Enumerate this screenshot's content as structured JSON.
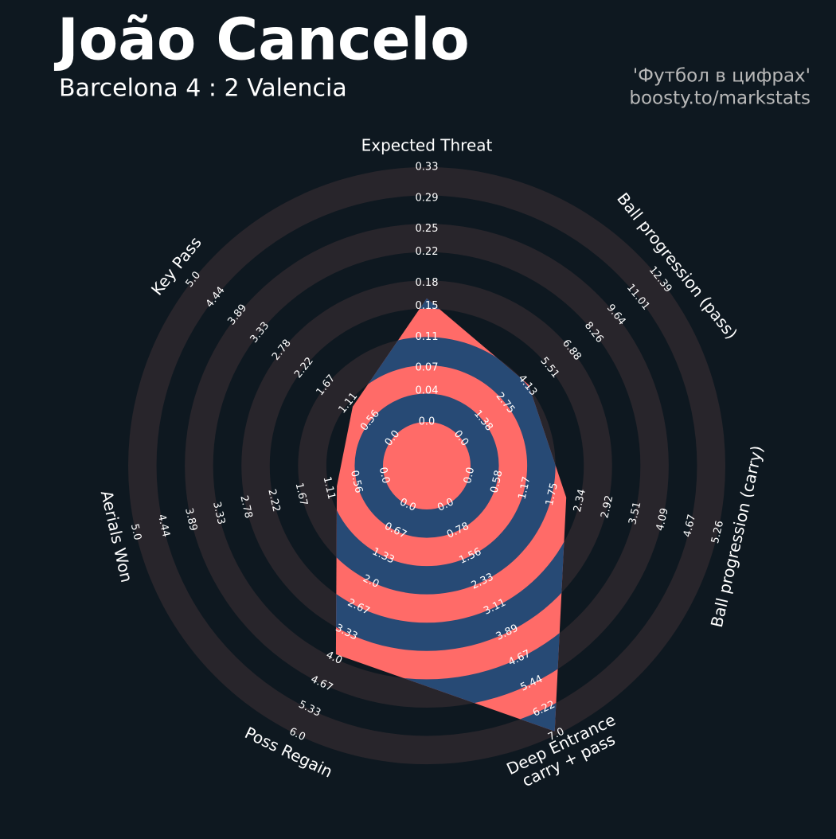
{
  "chart_data": {
    "type": "radar",
    "title": "João Cancelo",
    "subtitle": "Barcelona 4 : 2 Valencia",
    "credits": [
      "'Футбол в цифрах'",
      "boosty.to/markstats"
    ],
    "colors": {
      "background": "#0e1820",
      "rings": "#28252b",
      "band_a": "#ff6b68",
      "band_b": "#274a75"
    },
    "axes": [
      {
        "label": [
          "Expected Threat"
        ],
        "value": 0.16,
        "lim": [
          0,
          0.33
        ],
        "ticks": [
          {
            "value": 0,
            "label": "0.0"
          },
          0.04,
          0.07,
          0.11,
          0.15,
          0.18,
          0.22,
          0.25,
          0.29,
          0.33
        ]
      },
      {
        "label": [
          "Ball progression (pass)"
        ],
        "value": 4.2,
        "lim": [
          0,
          12.39
        ],
        "ticks": [
          {
            "value": 0,
            "label": "0.0"
          },
          1.38,
          2.75,
          4.13,
          5.51,
          6.88,
          8.26,
          9.64,
          11.01,
          12.39
        ]
      },
      {
        "label": [
          "Ball progression (carry)"
        ],
        "value": 2.05,
        "lim": [
          0,
          5.26
        ],
        "ticks": [
          {
            "value": 0,
            "label": "0.0"
          },
          0.58,
          1.17,
          1.75,
          2.34,
          2.92,
          3.51,
          4.09,
          4.67,
          5.26
        ]
      },
      {
        "label": [
          "Deep Entrance",
          "carry + pass"
        ],
        "value": 6.9,
        "lim": [
          0,
          7
        ],
        "ticks": [
          {
            "value": 0,
            "label": "0.0"
          },
          0.78,
          1.56,
          2.33,
          3.11,
          3.89,
          4.67,
          5.44,
          6.22,
          {
            "value": 7,
            "label": "7.0"
          }
        ]
      },
      {
        "label": [
          "Poss Regain"
        ],
        "value": 3.9,
        "lim": [
          0,
          6
        ],
        "ticks": [
          {
            "value": 0,
            "label": "0.0"
          },
          0.67,
          1.33,
          {
            "value": 2,
            "label": "2.0"
          },
          2.67,
          3.33,
          {
            "value": 4,
            "label": "4.0"
          },
          4.67,
          5.33,
          {
            "value": 6,
            "label": "6.0"
          }
        ]
      },
      {
        "label": [
          "Aerials Won"
        ],
        "value": 0.95,
        "lim": [
          0,
          5
        ],
        "ticks": [
          {
            "value": 0,
            "label": "0.0"
          },
          0.56,
          1.11,
          1.67,
          2.22,
          2.78,
          3.33,
          3.89,
          4.44,
          {
            "value": 5,
            "label": "5.0"
          }
        ]
      },
      {
        "label": [
          "Key Pass"
        ],
        "value": 1.0,
        "lim": [
          0,
          5
        ],
        "ticks": [
          {
            "value": 0,
            "label": "0.0"
          },
          0.56,
          1.11,
          1.67,
          2.22,
          2.78,
          3.33,
          3.89,
          4.44,
          {
            "value": 5,
            "label": "5.0"
          }
        ]
      }
    ]
  }
}
